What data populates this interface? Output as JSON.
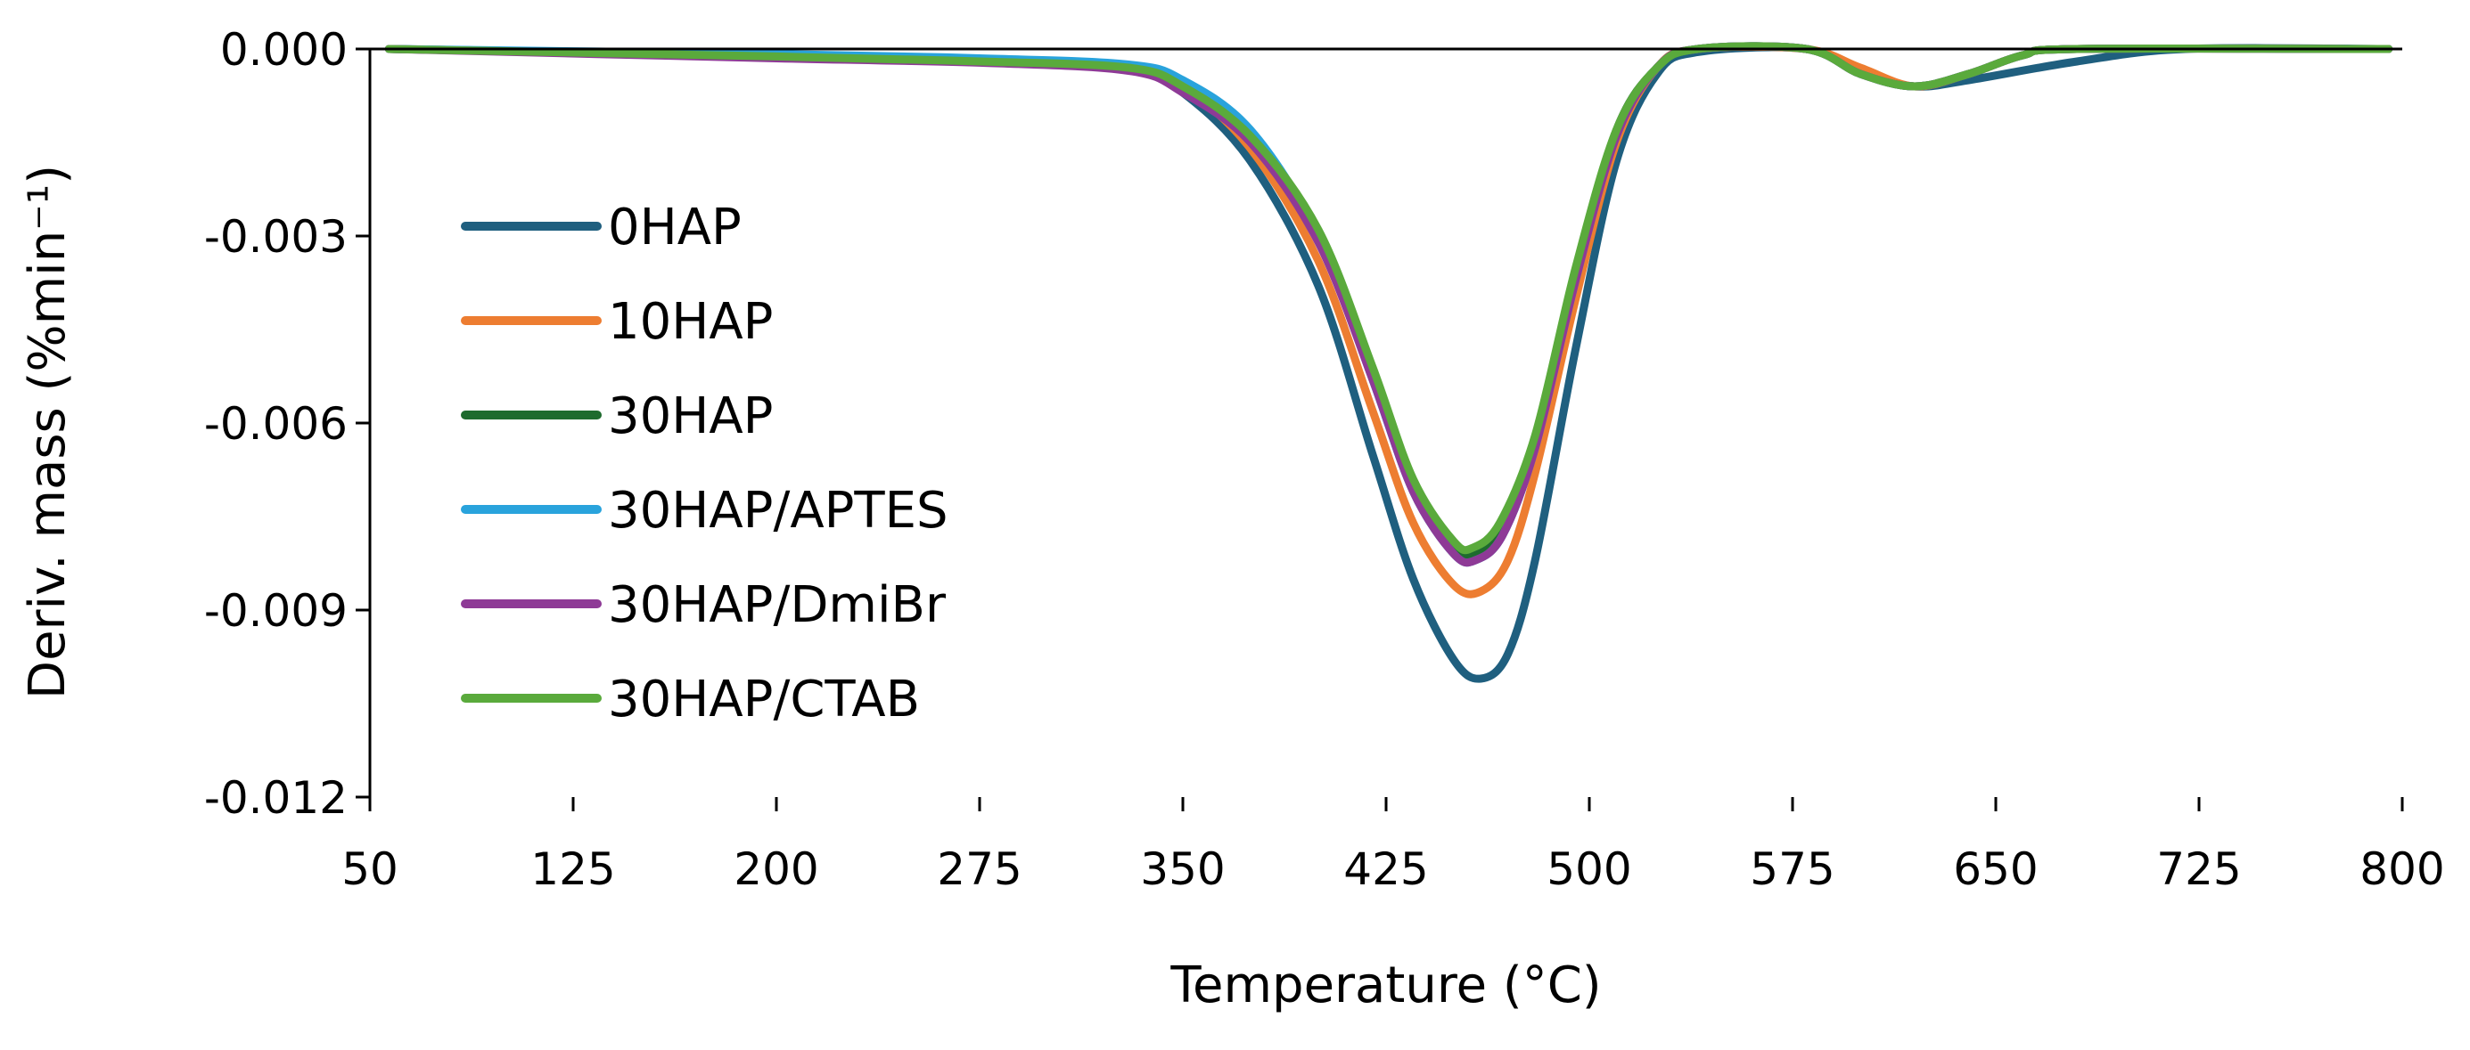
{
  "chart_data": {
    "type": "line",
    "title": "",
    "xlabel": "Temperature (°C)",
    "ylabel": "Deriv. mass (%min⁻¹)",
    "xlim": [
      50,
      800
    ],
    "ylim": [
      -0.012,
      0.0
    ],
    "x_ticks": [
      50,
      125,
      200,
      275,
      350,
      425,
      500,
      575,
      650,
      725,
      800
    ],
    "x_tick_labels": [
      "50",
      "125",
      "200",
      "275",
      "350",
      "425",
      "500",
      "575",
      "650",
      "725",
      "800"
    ],
    "y_ticks": [
      0.0,
      -0.003,
      -0.006,
      -0.009,
      -0.012
    ],
    "y_tick_labels": [
      "0.000",
      "-0.003",
      "-0.006",
      "-0.009",
      "-0.012"
    ],
    "legend_position": "left",
    "series": [
      {
        "name": "0HAP",
        "color": "#1f5f7f",
        "x": [
          57,
          200,
          275,
          330,
          350,
          375,
          400,
          420,
          435,
          450,
          460,
          470,
          480,
          495,
          510,
          525,
          540,
          580,
          600,
          620,
          640,
          680,
          720,
          795
        ],
        "y": [
          0,
          -0.0001,
          -0.00018,
          -0.0003,
          -0.0007,
          -0.0018,
          -0.0038,
          -0.0065,
          -0.0085,
          -0.0098,
          -0.0101,
          -0.0097,
          -0.0082,
          -0.0048,
          -0.0018,
          -0.0004,
          -5e-05,
          0,
          -0.0004,
          -0.0006,
          -0.0005,
          -0.0002,
          0,
          0
        ]
      },
      {
        "name": "10HAP",
        "color": "#ed7d31",
        "x": [
          57,
          200,
          275,
          330,
          350,
          375,
          400,
          420,
          435,
          450,
          460,
          470,
          480,
          495,
          510,
          525,
          540,
          580,
          600,
          620,
          640,
          660,
          680,
          795
        ],
        "y": [
          0,
          -0.0001,
          -0.00018,
          -0.0003,
          -0.0006,
          -0.0016,
          -0.0034,
          -0.0058,
          -0.0076,
          -0.0086,
          -0.0087,
          -0.0082,
          -0.0068,
          -0.004,
          -0.0015,
          -0.0003,
          0,
          0,
          -0.0003,
          -0.0006,
          -0.0004,
          -0.0001,
          0,
          0
        ]
      },
      {
        "name": "30HAP",
        "color": "#1e6b2e",
        "x": [
          57,
          200,
          275,
          330,
          350,
          375,
          400,
          420,
          435,
          450,
          458,
          468,
          480,
          495,
          510,
          525,
          540,
          580,
          600,
          620,
          640,
          660,
          680,
          795
        ],
        "y": [
          0,
          -0.00012,
          -0.0002,
          -0.0003,
          -0.0006,
          -0.0014,
          -0.003,
          -0.0052,
          -0.007,
          -0.008,
          -0.0081,
          -0.0077,
          -0.0063,
          -0.0036,
          -0.0013,
          -0.0003,
          0,
          0,
          -0.0004,
          -0.0006,
          -0.0004,
          -0.0001,
          0,
          0
        ]
      },
      {
        "name": "30HAP/APTES",
        "color": "#29a3dc",
        "x": [
          57,
          200,
          275,
          330,
          350,
          375,
          400,
          420,
          435,
          450,
          458,
          468,
          480,
          495,
          510,
          525,
          540,
          580,
          600,
          620,
          640,
          660,
          680,
          795
        ],
        "y": [
          0,
          -8e-05,
          -0.00015,
          -0.00025,
          -0.0005,
          -0.0013,
          -0.003,
          -0.0053,
          -0.0071,
          -0.0081,
          -0.0082,
          -0.0078,
          -0.0064,
          -0.0037,
          -0.0014,
          -0.0003,
          0,
          0,
          -0.0004,
          -0.0006,
          -0.0004,
          -0.0001,
          0,
          0
        ]
      },
      {
        "name": "30HAP/DmiBr",
        "color": "#8e3a96",
        "x": [
          57,
          200,
          275,
          330,
          350,
          375,
          400,
          420,
          435,
          450,
          458,
          468,
          480,
          495,
          510,
          525,
          540,
          580,
          600,
          620,
          640,
          660,
          680,
          795
        ],
        "y": [
          0,
          -0.00015,
          -0.00022,
          -0.00035,
          -0.0007,
          -0.0015,
          -0.0031,
          -0.0053,
          -0.0071,
          -0.0081,
          -0.0082,
          -0.0078,
          -0.0064,
          -0.0037,
          -0.0014,
          -0.0003,
          0,
          0,
          -0.0004,
          -0.0006,
          -0.0004,
          -0.0001,
          0,
          0
        ]
      },
      {
        "name": "30HAP/CTAB",
        "color": "#5aaa3c",
        "x": [
          57,
          200,
          275,
          330,
          350,
          375,
          400,
          420,
          435,
          450,
          457,
          467,
          480,
          495,
          510,
          525,
          540,
          580,
          600,
          620,
          640,
          660,
          680,
          795
        ],
        "y": [
          0,
          -0.00012,
          -0.0002,
          -0.0003,
          -0.0006,
          -0.0014,
          -0.0029,
          -0.0051,
          -0.0069,
          -0.0079,
          -0.008,
          -0.0076,
          -0.0062,
          -0.0035,
          -0.0013,
          -0.0003,
          0,
          0,
          -0.0004,
          -0.0006,
          -0.0004,
          -0.0001,
          0,
          0
        ]
      }
    ]
  }
}
